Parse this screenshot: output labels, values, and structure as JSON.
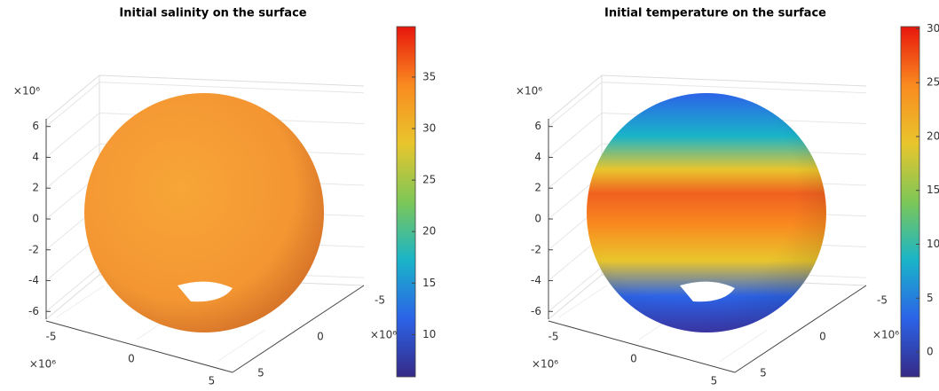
{
  "chart_data": [
    {
      "type": "surface",
      "title": "Initial salinity on the surface",
      "clim": [
        5.9,
        39.9
      ],
      "cticks": [
        10,
        15,
        20,
        25,
        30,
        35
      ],
      "colormap": [
        "#352a87",
        "#2c63e8",
        "#1ab4c8",
        "#7dc757",
        "#e9c52c",
        "#f98a1f",
        "#e8160d"
      ],
      "xlim": [
        -6.5,
        6.5
      ],
      "xticks": [
        -5,
        0,
        5
      ],
      "ylim": [
        -6.5,
        6.5
      ],
      "yticks": [
        -5,
        0,
        5
      ],
      "zlim": [
        -6.5,
        6.5
      ],
      "zticks": [
        -6,
        -4,
        -2,
        0,
        2,
        4,
        6
      ],
      "exponent_label": "×10⁶",
      "grid": true
    },
    {
      "type": "surface",
      "title": "Initial temperature on the surface",
      "clim": [
        -2.3,
        30.2
      ],
      "cticks": [
        0,
        5,
        10,
        15,
        20,
        25,
        30
      ],
      "colormap": [
        "#352a87",
        "#2c63e8",
        "#1ab4c8",
        "#7dc757",
        "#e9c52c",
        "#f98a1f",
        "#e8160d"
      ],
      "xlim": [
        -6.5,
        6.5
      ],
      "xticks": [
        -5,
        0,
        5
      ],
      "ylim": [
        -6.5,
        6.5
      ],
      "yticks": [
        -5,
        0,
        5
      ],
      "zlim": [
        -6.5,
        6.5
      ],
      "zticks": [
        -6,
        -4,
        -2,
        0,
        2,
        4,
        6
      ],
      "exponent_label": "×10⁶",
      "grid": true
    }
  ]
}
